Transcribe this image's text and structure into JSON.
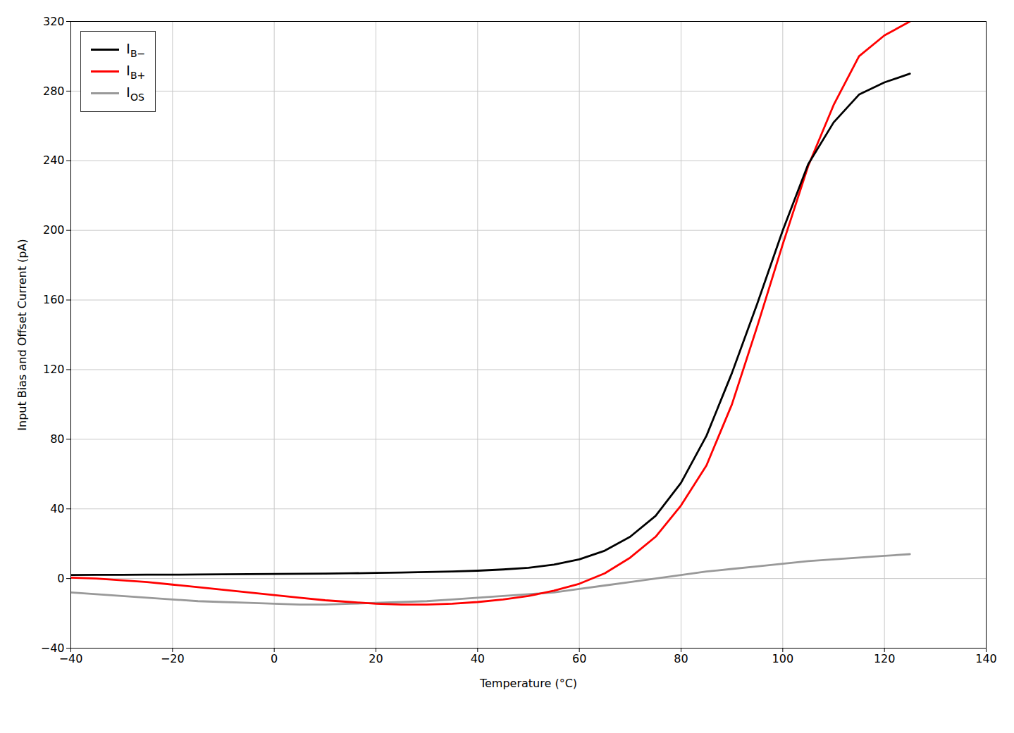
{
  "chart_data": {
    "type": "line",
    "xlabel": "Temperature (°C)",
    "ylabel": "Input Bias and Offset Current (pA)",
    "x": [
      -40,
      -35,
      -30,
      -25,
      -20,
      -15,
      -10,
      -5,
      0,
      5,
      10,
      15,
      20,
      25,
      30,
      35,
      40,
      45,
      50,
      55,
      60,
      65,
      70,
      75,
      80,
      85,
      90,
      95,
      100,
      105,
      110,
      115,
      120,
      125
    ],
    "series": [
      {
        "name": "IB−",
        "color": "#000000",
        "values": [
          2.0,
          2.1,
          2.1,
          2.2,
          2.2,
          2.3,
          2.4,
          2.5,
          2.6,
          2.7,
          2.8,
          3.0,
          3.2,
          3.4,
          3.7,
          4.0,
          4.5,
          5.2,
          6.2,
          8.0,
          11.0,
          16.0,
          24.0,
          36.0,
          55.0,
          82.0,
          118.0,
          158.0,
          200.0,
          238.0,
          262.0,
          278.0,
          285.0,
          290.0
        ]
      },
      {
        "name": "IB+",
        "color": "#ff0000",
        "values": [
          0.5,
          0.0,
          -1.0,
          -2.0,
          -3.5,
          -5.0,
          -6.5,
          -8.0,
          -9.5,
          -11.0,
          -12.5,
          -13.5,
          -14.5,
          -15.0,
          -15.0,
          -14.5,
          -13.5,
          -12.0,
          -10.0,
          -7.0,
          -3.0,
          3.0,
          12.0,
          24.0,
          42.0,
          65.0,
          100.0,
          145.0,
          192.0,
          237.0,
          272.0,
          300.0,
          312.0,
          320.0
        ]
      },
      {
        "name": "IOS",
        "color": "#999999",
        "values": [
          -8.0,
          -9.0,
          -10.0,
          -11.0,
          -12.0,
          -13.0,
          -13.5,
          -14.0,
          -14.5,
          -15.0,
          -15.0,
          -14.5,
          -14.0,
          -13.5,
          -13.0,
          -12.0,
          -11.0,
          -10.0,
          -9.0,
          -8.0,
          -6.0,
          -4.0,
          -2.0,
          0.0,
          2.0,
          4.0,
          5.5,
          7.0,
          8.5,
          10.0,
          11.0,
          12.0,
          13.0,
          14.0
        ]
      }
    ],
    "xlim": [
      -40,
      140
    ],
    "ylim": [
      -40,
      320
    ],
    "xticks": [
      -40,
      -20,
      0,
      20,
      40,
      60,
      80,
      100,
      120,
      140
    ],
    "yticks": [
      -40,
      0,
      40,
      80,
      120,
      160,
      200,
      240,
      280,
      320
    ],
    "grid": true,
    "legend": "upper-left"
  }
}
